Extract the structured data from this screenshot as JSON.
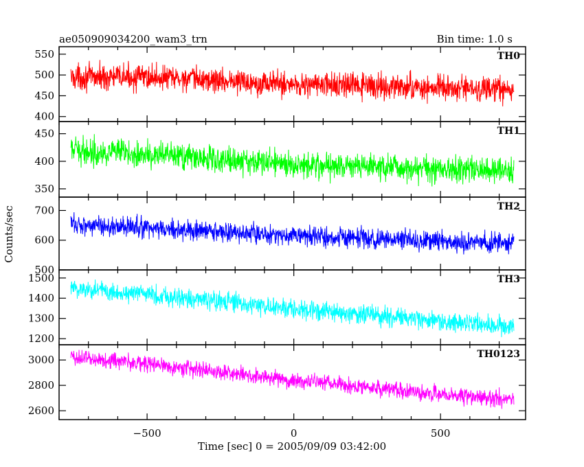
{
  "header": {
    "title": "ae050909034200_wam3_trn",
    "bin_time": "Bin time: 1.0 s"
  },
  "chart_data": {
    "type": "line",
    "xlabel": "Time [sec] 0 = 2005/09/09 03:42:00",
    "ylabel": "Counts/sec",
    "xlim": [
      -800,
      790
    ],
    "xticks": [
      -500,
      0,
      500
    ],
    "x_start": -760,
    "x_end": 750,
    "x_step": 1.0,
    "grid": false,
    "panels": [
      {
        "name": "TH0",
        "color": "#ff0000",
        "ylim": [
          388,
          568
        ],
        "yticks": [
          400,
          450,
          500,
          550
        ],
        "trend": [
          [
            -760,
            495
          ],
          [
            -500,
            495
          ],
          [
            0,
            478
          ],
          [
            500,
            468
          ],
          [
            750,
            463
          ]
        ],
        "noise_amplitude": 28
      },
      {
        "name": "TH1",
        "color": "#00ff00",
        "ylim": [
          335,
          472
        ],
        "yticks": [
          350,
          400,
          450
        ],
        "trend": [
          [
            -760,
            420
          ],
          [
            -500,
            412
          ],
          [
            0,
            395
          ],
          [
            500,
            386
          ],
          [
            750,
            383
          ]
        ],
        "noise_amplitude": 22
      },
      {
        "name": "TH2",
        "color": "#0000ff",
        "ylim": [
          500,
          745
        ],
        "yticks": [
          500,
          600,
          700
        ],
        "trend": [
          [
            -760,
            655
          ],
          [
            -500,
            640
          ],
          [
            0,
            615
          ],
          [
            500,
            595
          ],
          [
            750,
            590
          ]
        ],
        "noise_amplitude": 32
      },
      {
        "name": "TH3",
        "color": "#00ffff",
        "ylim": [
          1170,
          1540
        ],
        "yticks": [
          1200,
          1300,
          1400,
          1500
        ],
        "trend": [
          [
            -760,
            1450
          ],
          [
            -500,
            1420
          ],
          [
            0,
            1345
          ],
          [
            500,
            1285
          ],
          [
            750,
            1262
          ]
        ],
        "noise_amplitude": 45
      },
      {
        "name": "TH0123",
        "color": "#ff00ff",
        "ylim": [
          2530,
          3120
        ],
        "yticks": [
          2600,
          2800,
          3000
        ],
        "trend": [
          [
            -760,
            3025
          ],
          [
            -500,
            2970
          ],
          [
            0,
            2840
          ],
          [
            500,
            2730
          ],
          [
            750,
            2690
          ]
        ],
        "noise_amplitude": 60
      }
    ]
  }
}
